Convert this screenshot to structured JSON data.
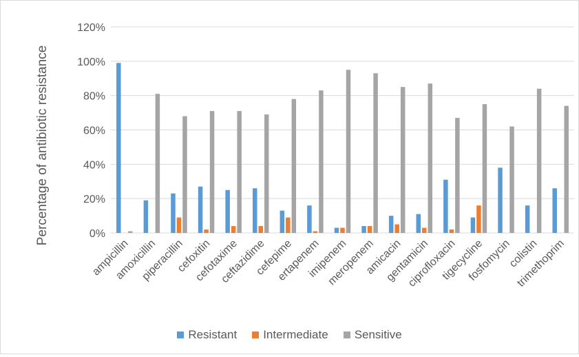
{
  "chart_data": {
    "type": "bar",
    "title": "",
    "xlabel": "",
    "ylabel": "Percentage of antibiotic resistance",
    "ylim": [
      0,
      120
    ],
    "yticks": [
      "0%",
      "20%",
      "40%",
      "60%",
      "80%",
      "100%",
      "120%"
    ],
    "grid": true,
    "legend": "bottom",
    "categories": [
      "ampicillin",
      "amoxicillin",
      "piperacillin",
      "cefoxitin",
      "cefotaxime",
      "ceftazidime",
      "cefepime",
      "ertapenem",
      "imipenem",
      "meropenem",
      "amicacin",
      "gentamicin",
      "ciprofloxacin",
      "tigecycline",
      "fosfomycin",
      "colistin",
      "trimethoprim"
    ],
    "series": [
      {
        "name": "Resistant",
        "color": "#5b9bd5",
        "values": [
          99,
          19,
          23,
          27,
          25,
          26,
          13,
          16,
          3,
          4,
          10,
          11,
          31,
          9,
          38,
          16,
          26
        ]
      },
      {
        "name": "Intermediate",
        "color": "#ed7d31",
        "values": [
          0,
          0,
          9,
          2,
          4,
          4,
          9,
          1,
          3,
          4,
          5,
          3,
          2,
          16,
          0,
          0,
          0
        ]
      },
      {
        "name": "Sensitive",
        "color": "#a5a5a5",
        "values": [
          1,
          81,
          68,
          71,
          71,
          69,
          78,
          83,
          95,
          93,
          85,
          87,
          67,
          75,
          62,
          84,
          74
        ]
      }
    ]
  }
}
